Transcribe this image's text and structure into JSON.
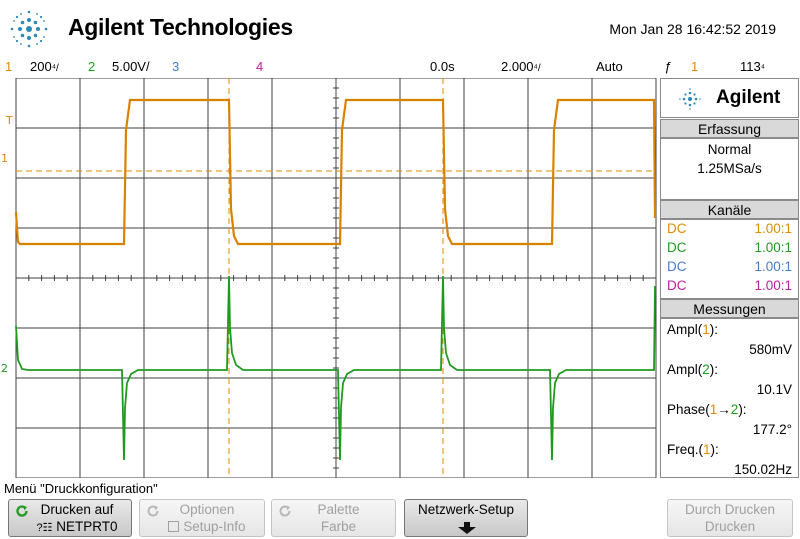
{
  "header": {
    "brand": "Agilent Technologies",
    "datetime": "Mon Jan 28 16:42:52 2019"
  },
  "statusbar": {
    "ch1_num": "1",
    "ch1_scale": "200",
    "ch1_unit": "⁴/",
    "ch2_num": "2",
    "ch2_scale": "5.00V/",
    "ch3_num": "3",
    "ch4_num": "4",
    "delay": "0.0s",
    "timebase": "2.000",
    "timebase_unit": "⁴/",
    "trigger_mode": "Auto",
    "trigger_icon": "ƒ",
    "trigger_source": "1",
    "trigger_level": "113",
    "trigger_unit": "⁴",
    "colors": {
      "ch1": "#e08a00",
      "ch2": "#1f9a1f",
      "ch3": "#4a7ad0",
      "ch4": "#c0209a"
    }
  },
  "screen": {
    "ch1_marker": "1",
    "ch2_marker": "2",
    "trigger_marker": "T"
  },
  "panel": {
    "brand": "Agilent",
    "acquisition": {
      "title": "Erfassung",
      "mode": "Normal",
      "rate": "1.25MSa/s"
    },
    "channels": {
      "title": "Kanäle",
      "rows": [
        {
          "coupling": "DC",
          "probe": "1.00:1",
          "color": "#e08a00"
        },
        {
          "coupling": "DC",
          "probe": "1.00:1",
          "color": "#1f9a1f"
        },
        {
          "coupling": "DC",
          "probe": "1.00:1",
          "color": "#4a7ad0"
        },
        {
          "coupling": "DC",
          "probe": "1.00:1",
          "color": "#c0209a"
        }
      ]
    },
    "measurements": {
      "title": "Messungen",
      "ampl1_label_pre": "Ampl(",
      "ampl1_ch": "1",
      "ampl1_label_post": "):",
      "ampl1_value": "580mV",
      "ampl2_label_pre": "Ampl(",
      "ampl2_ch": "2",
      "ampl2_label_post": "):",
      "ampl2_value": "10.1V",
      "phase_label_pre": "Phase(",
      "phase_ch1": "1",
      "phase_arrow": "→",
      "phase_ch2": "2",
      "phase_label_post": "):",
      "phase_value": "177.2°",
      "freq_label_pre": "Freq.(",
      "freq_ch": "1",
      "freq_label_post": "):",
      "freq_value": "150.02Hz"
    }
  },
  "menu": {
    "label": "Menü \"Druckkonfiguration\"",
    "softkeys": [
      {
        "line1": "Drucken auf",
        "line2": "NETPRT0"
      },
      {
        "line1": "Optionen",
        "line2": "Setup-Info"
      },
      {
        "line1": "Palette",
        "line2": "Farbe"
      },
      {
        "line1": "Netzwerk-Setup",
        "line2": ""
      },
      {
        "line1": "Durch Drucken",
        "line2": "Drucken"
      }
    ]
  }
}
